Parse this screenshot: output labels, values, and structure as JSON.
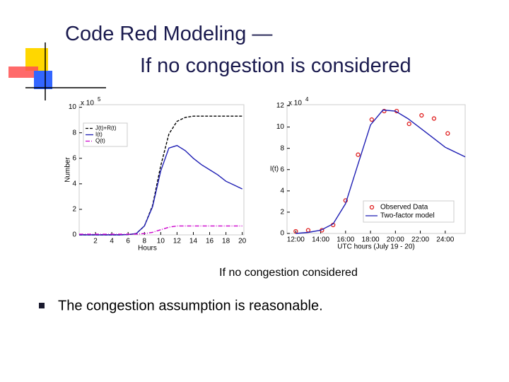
{
  "slide": {
    "title_lines": [
      "Code Red Modeling —",
      "If no congestion is considered"
    ],
    "caption": "If no congestion considered",
    "bullets": [
      "The congestion assumption is reasonable."
    ]
  },
  "chart_data": [
    {
      "type": "line",
      "xlabel": "Hours",
      "ylabel": "Number",
      "y_scale": {
        "base": "x 10",
        "exponent": "5"
      },
      "xlim": [
        0,
        20.2
      ],
      "ylim": [
        0,
        10.2
      ],
      "xticks": [
        2,
        4,
        6,
        8,
        10,
        12,
        14,
        16,
        18,
        20
      ],
      "yticks": [
        0,
        2,
        4,
        6,
        8,
        10
      ],
      "legend": "upper left",
      "series": [
        {
          "name": "J(t)+R(t)",
          "color": "#000000",
          "style": "dashed",
          "x": [
            0,
            1,
            2,
            3,
            4,
            5,
            6,
            7,
            8,
            9,
            10,
            11,
            12,
            13,
            14,
            15,
            16,
            17,
            18,
            19,
            20
          ],
          "values": [
            0,
            0,
            0,
            0,
            0,
            0,
            0.02,
            0.1,
            0.7,
            2.3,
            5.4,
            7.9,
            8.9,
            9.2,
            9.3,
            9.3,
            9.3,
            9.3,
            9.3,
            9.3,
            9.3
          ]
        },
        {
          "name": "I(t)",
          "color": "#1f1fb4",
          "style": "solid",
          "x": [
            0,
            1,
            2,
            3,
            4,
            5,
            6,
            7,
            8,
            9,
            10,
            11,
            12,
            13,
            14,
            15,
            16,
            17,
            18,
            19,
            20
          ],
          "values": [
            0,
            0,
            0,
            0,
            0,
            0,
            0.02,
            0.1,
            0.7,
            2.2,
            5.0,
            6.8,
            7.0,
            6.6,
            6.0,
            5.5,
            5.1,
            4.7,
            4.2,
            3.9,
            3.6
          ]
        },
        {
          "name": "Q(t)",
          "color": "#cc00cc",
          "style": "dashdot",
          "x": [
            0,
            1,
            2,
            3,
            4,
            5,
            6,
            7,
            8,
            9,
            10,
            11,
            12,
            13,
            14,
            15,
            16,
            17,
            18,
            19,
            20
          ],
          "values": [
            0.05,
            0.05,
            0.05,
            0.05,
            0.05,
            0.05,
            0.05,
            0.06,
            0.1,
            0.2,
            0.4,
            0.6,
            0.7,
            0.7,
            0.7,
            0.7,
            0.7,
            0.7,
            0.7,
            0.7,
            0.7
          ]
        }
      ]
    },
    {
      "type": "line",
      "xlabel": "UTC hours (July 19 - 20)",
      "ylabel": "I(t)",
      "y_scale": {
        "base": "x 10",
        "exponent": "4"
      },
      "xlim": [
        11.3,
        25.6
      ],
      "ylim": [
        0,
        12.1
      ],
      "xticks": [
        {
          "value": 12,
          "label": "12:00"
        },
        {
          "value": 14,
          "label": "14:00"
        },
        {
          "value": 16,
          "label": "16:00"
        },
        {
          "value": 18,
          "label": "18:00"
        },
        {
          "value": 20,
          "label": "20:00"
        },
        {
          "value": 22,
          "label": "22:00"
        },
        {
          "value": 24,
          "label": "24:00"
        }
      ],
      "yticks": [
        0,
        2,
        4,
        6,
        8,
        10,
        12
      ],
      "legend": "lower right",
      "series": [
        {
          "name": "Observed Data",
          "color": "#e02020",
          "style": "markers",
          "x": [
            12,
            13,
            14.1,
            15,
            16,
            17,
            18.1,
            19.1,
            20.1,
            21.1,
            22.1,
            23.1,
            24.2
          ],
          "values": [
            0.2,
            0.3,
            0.3,
            0.8,
            3.1,
            7.4,
            10.7,
            11.5,
            11.5,
            10.3,
            11.1,
            10.8,
            9.4
          ]
        },
        {
          "name": "Two-factor model",
          "color": "#1f1fb4",
          "style": "solid",
          "x": [
            12,
            13,
            14,
            15,
            16,
            17,
            18,
            19,
            20,
            21,
            22,
            23,
            24,
            25.6
          ],
          "values": [
            0,
            0.1,
            0.3,
            0.9,
            2.8,
            6.5,
            10.2,
            11.6,
            11.5,
            10.8,
            9.9,
            9.0,
            8.1,
            7.2
          ]
        }
      ]
    }
  ]
}
